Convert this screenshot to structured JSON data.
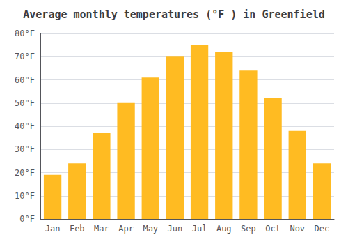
{
  "chart_data": {
    "type": "bar",
    "title": "Average monthly temperatures (°F ) in Greenfield",
    "categories": [
      "Jan",
      "Feb",
      "Mar",
      "Apr",
      "May",
      "Jun",
      "Jul",
      "Aug",
      "Sep",
      "Oct",
      "Nov",
      "Dec"
    ],
    "values": [
      19,
      24,
      37,
      50,
      61,
      70,
      75,
      72,
      64,
      52,
      38,
      24
    ],
    "color": "#FFBB22",
    "ylim": [
      0,
      80
    ],
    "yticks": [
      {
        "value": 0,
        "label": "0°F"
      },
      {
        "value": 10,
        "label": "10°F"
      },
      {
        "value": 20,
        "label": "20°F"
      },
      {
        "value": 30,
        "label": "30°F"
      },
      {
        "value": 40,
        "label": "40°F"
      },
      {
        "value": 50,
        "label": "50°F"
      },
      {
        "value": 60,
        "label": "60°F"
      },
      {
        "value": 70,
        "label": "70°F"
      },
      {
        "value": 80,
        "label": "80°F"
      }
    ],
    "grid": true
  }
}
